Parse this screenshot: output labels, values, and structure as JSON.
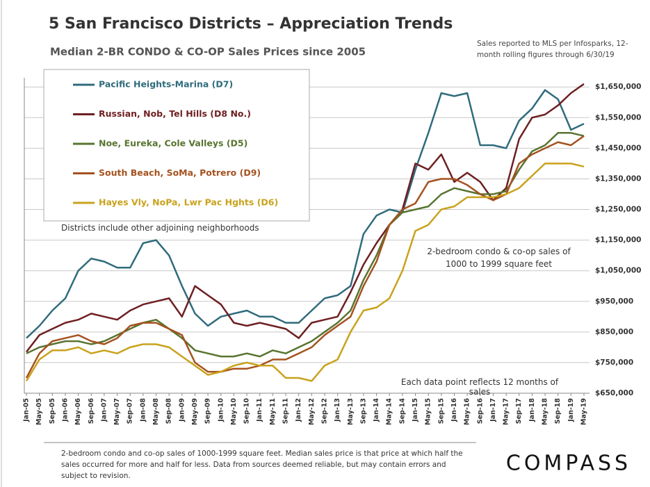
{
  "chart_data": {
    "type": "line",
    "title": "5 San Francisco Districts – Appreciation Trends",
    "subtitle": "Median 2-BR CONDO & CO-OP Sales Prices since 2005",
    "source_note": "Sales reported to MLS per Infosparks, 12-month rolling figures through 6/30/19",
    "annotations": [
      "Districts include other adjoining neighborhoods",
      "2-bedroom condo & co-op sales of 1000 to 1999 square feet",
      "Each data point reflects 12 months of sales"
    ],
    "footnote": "2-bedroom condo and co-op sales of 1000-1999 square feet. Median sales price is that price at which half the sales occurred for more and half for less. Data from sources deemed reliable, but may contain errors and subject to revision.",
    "categories": [
      "Jan-05",
      "May-05",
      "Sep-05",
      "Jan-06",
      "May-06",
      "Sep-06",
      "Jan-07",
      "May-07",
      "Sep-07",
      "Jan-08",
      "May-08",
      "Sep-08",
      "Jan-09",
      "May-09",
      "Sep-09",
      "Jan-10",
      "May-10",
      "Sep-10",
      "Jan-11",
      "May-11",
      "Sep-11",
      "Jan-12",
      "May-12",
      "Sep-12",
      "Jan-13",
      "May-13",
      "Sep-13",
      "Jan-14",
      "May-14",
      "Sep-14",
      "Jan-15",
      "May-15",
      "Sep-15",
      "Jan-16",
      "May-16",
      "Sep-16",
      "Jan-17",
      "May-17",
      "Sep-17",
      "Jan-18",
      "May-18",
      "Sep-18",
      "Jan-19",
      "May-19"
    ],
    "series": [
      {
        "name": "Pacific Heights-Marina (D7)",
        "color": "#2f6b7c",
        "values": [
          830000,
          870000,
          920000,
          960000,
          1050000,
          1090000,
          1080000,
          1060000,
          1060000,
          1140000,
          1150000,
          1100000,
          1000000,
          910000,
          870000,
          900000,
          910000,
          920000,
          900000,
          900000,
          880000,
          880000,
          920000,
          960000,
          970000,
          1000000,
          1170000,
          1230000,
          1250000,
          1240000,
          1380000,
          1500000,
          1630000,
          1620000,
          1630000,
          1460000,
          1460000,
          1450000,
          1540000,
          1580000,
          1640000,
          1610000,
          1510000,
          1530000
        ]
      },
      {
        "name": "Russian, Nob, Tel Hills (D8 No.)",
        "color": "#6e1f22",
        "values": [
          785000,
          840000,
          860000,
          880000,
          890000,
          910000,
          900000,
          890000,
          920000,
          940000,
          950000,
          960000,
          900000,
          1000000,
          970000,
          940000,
          880000,
          870000,
          880000,
          870000,
          860000,
          830000,
          880000,
          890000,
          900000,
          980000,
          1070000,
          1140000,
          1200000,
          1250000,
          1400000,
          1380000,
          1430000,
          1340000,
          1370000,
          1340000,
          1280000,
          1320000,
          1480000,
          1550000,
          1560000,
          1590000,
          1630000,
          1660000
        ]
      },
      {
        "name": "Noe, Eureka, Cole Valleys (D5)",
        "color": "#58742f",
        "values": [
          780000,
          800000,
          810000,
          820000,
          820000,
          810000,
          820000,
          840000,
          860000,
          880000,
          890000,
          860000,
          830000,
          790000,
          780000,
          770000,
          770000,
          780000,
          770000,
          790000,
          780000,
          800000,
          820000,
          850000,
          880000,
          920000,
          1020000,
          1100000,
          1200000,
          1240000,
          1250000,
          1260000,
          1300000,
          1320000,
          1310000,
          1300000,
          1300000,
          1310000,
          1380000,
          1440000,
          1460000,
          1500000,
          1500000,
          1490000
        ]
      },
      {
        "name": "South Beach, SoMa, Potrero (D9)",
        "color": "#a4521f",
        "values": [
          700000,
          780000,
          820000,
          830000,
          840000,
          820000,
          810000,
          830000,
          870000,
          880000,
          880000,
          860000,
          840000,
          750000,
          720000,
          720000,
          730000,
          730000,
          740000,
          760000,
          760000,
          780000,
          800000,
          840000,
          870000,
          900000,
          1000000,
          1080000,
          1200000,
          1250000,
          1270000,
          1340000,
          1350000,
          1350000,
          1330000,
          1300000,
          1280000,
          1300000,
          1400000,
          1430000,
          1450000,
          1470000,
          1460000,
          1490000
        ]
      },
      {
        "name": "Hayes Vly, NoPa, Lwr Pac Hghts (D6)",
        "color": "#c9a21c",
        "values": [
          690000,
          760000,
          790000,
          790000,
          800000,
          780000,
          790000,
          780000,
          800000,
          810000,
          810000,
          800000,
          770000,
          740000,
          710000,
          720000,
          740000,
          750000,
          740000,
          740000,
          700000,
          700000,
          690000,
          740000,
          760000,
          850000,
          920000,
          930000,
          960000,
          1050000,
          1180000,
          1200000,
          1250000,
          1260000,
          1290000,
          1290000,
          1290000,
          1300000,
          1320000,
          1360000,
          1400000,
          1400000,
          1400000,
          1390000
        ]
      }
    ],
    "ylim": [
      650000,
      1680000
    ],
    "yticks": [
      {
        "value": 650000,
        "label": "$650,000"
      },
      {
        "value": 750000,
        "label": "$750,000"
      },
      {
        "value": 850000,
        "label": "$850,000"
      },
      {
        "value": 950000,
        "label": "$950,000"
      },
      {
        "value": 1050000,
        "label": "$1,050,000"
      },
      {
        "value": 1150000,
        "label": "$1,150,000"
      },
      {
        "value": 1250000,
        "label": "$1,250,000"
      },
      {
        "value": 1350000,
        "label": "$1,350,000"
      },
      {
        "value": 1450000,
        "label": "$1,450,000"
      },
      {
        "value": 1550000,
        "label": "$1,550,000"
      },
      {
        "value": 1650000,
        "label": "$1,650,000"
      }
    ],
    "grid": true,
    "legend": "top-left"
  },
  "brand": "COMPASS"
}
